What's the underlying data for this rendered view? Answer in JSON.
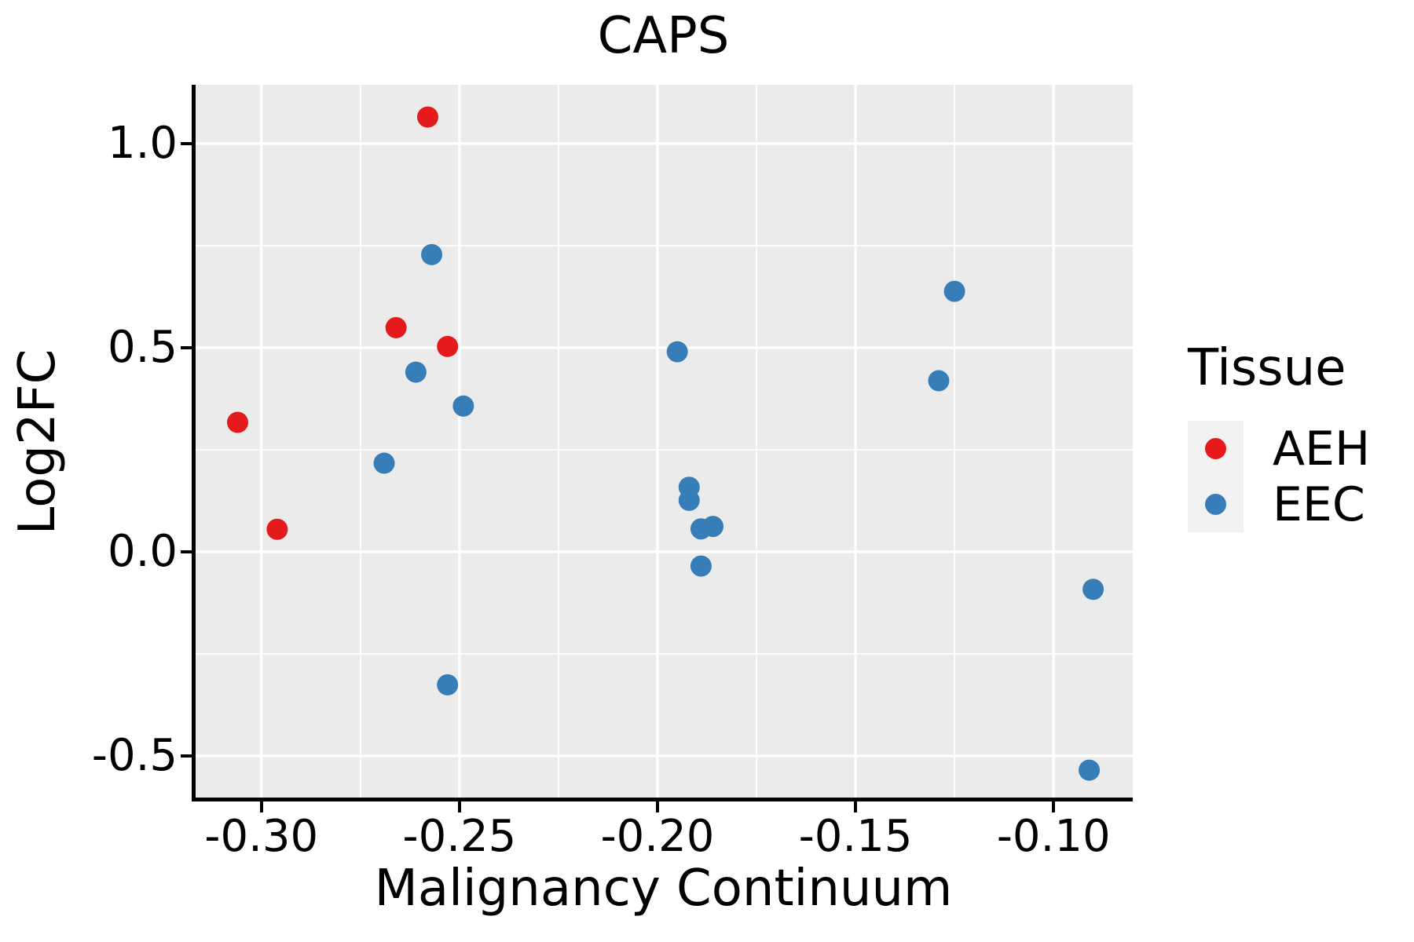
{
  "chart_data": {
    "type": "scatter",
    "title": "CAPS",
    "xlabel": "Malignancy Continuum",
    "ylabel": "Log2FC",
    "xlim": [
      -0.317,
      -0.08
    ],
    "ylim": [
      -0.606,
      1.144
    ],
    "grid": "on",
    "panel_background": "#ebebeb",
    "gridline_color": "#ffffff",
    "x_ticks": {
      "values": [
        -0.3,
        -0.25,
        -0.2,
        -0.15,
        -0.1
      ],
      "labels": [
        "-0.30",
        "-0.25",
        "-0.20",
        "-0.15",
        "-0.10"
      ],
      "minor": [
        -0.275,
        -0.225,
        -0.175,
        -0.125
      ]
    },
    "y_ticks": {
      "values": [
        1.0,
        0.5,
        0.0,
        -0.5
      ],
      "labels": [
        "1.0",
        "0.5",
        "0.0",
        "-0.5"
      ],
      "minor": [
        0.75,
        0.25,
        -0.25
      ]
    },
    "legend": {
      "title": "Tissue",
      "position": "right",
      "key_background": "#f2f2f2"
    },
    "series": [
      {
        "name": "AEH",
        "color": "#e41a1c",
        "points": [
          [
            -0.258,
            1.065
          ],
          [
            -0.266,
            0.549
          ],
          [
            -0.253,
            0.503
          ],
          [
            -0.306,
            0.317
          ],
          [
            -0.296,
            0.055
          ]
        ]
      },
      {
        "name": "EEC",
        "color": "#377eb8",
        "points": [
          [
            -0.257,
            0.728
          ],
          [
            -0.261,
            0.44
          ],
          [
            -0.249,
            0.357
          ],
          [
            -0.269,
            0.217
          ],
          [
            -0.253,
            -0.326
          ],
          [
            -0.195,
            0.49
          ],
          [
            -0.192,
            0.158
          ],
          [
            -0.192,
            0.126
          ],
          [
            -0.189,
            0.056
          ],
          [
            -0.186,
            0.062
          ],
          [
            -0.189,
            -0.035
          ],
          [
            -0.125,
            0.638
          ],
          [
            -0.129,
            0.419
          ],
          [
            -0.09,
            -0.092
          ],
          [
            -0.091,
            -0.535
          ]
        ]
      }
    ]
  }
}
